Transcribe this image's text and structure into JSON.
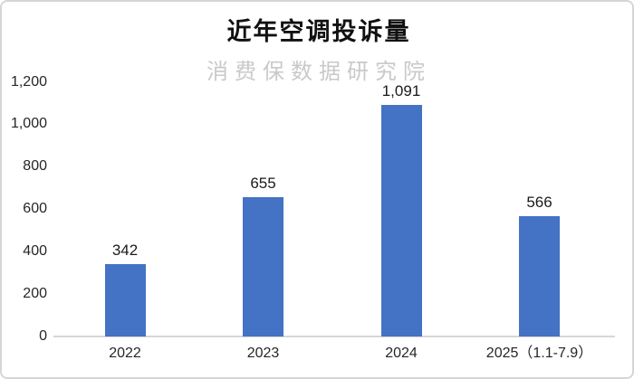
{
  "chart_data": {
    "type": "bar",
    "title": "近年空调投诉量",
    "watermark": "消费保数据研究院",
    "categories": [
      "2022",
      "2023",
      "2024",
      "2025（1.1-7.9）"
    ],
    "values": [
      342,
      655,
      1091,
      566
    ],
    "value_labels": [
      "342",
      "655",
      "1,091",
      "566"
    ],
    "y_ticks": [
      {
        "value": 0,
        "label": "0"
      },
      {
        "value": 200,
        "label": "200"
      },
      {
        "value": 400,
        "label": "400"
      },
      {
        "value": 600,
        "label": "600"
      },
      {
        "value": 800,
        "label": "800"
      },
      {
        "value": 1000,
        "label": "1,000"
      },
      {
        "value": 1200,
        "label": "1,200"
      }
    ],
    "ylim": [
      0,
      1200
    ],
    "xlabel": "",
    "ylabel": "",
    "grid": false,
    "legend_position": "none",
    "colors": {
      "bar": "#4472C4",
      "axis_line": "#d6d6d6",
      "text": "#1a1a1a",
      "watermark": "#c9c9c9",
      "frame_border": "#d6d6d6",
      "background": "#ffffff"
    }
  }
}
